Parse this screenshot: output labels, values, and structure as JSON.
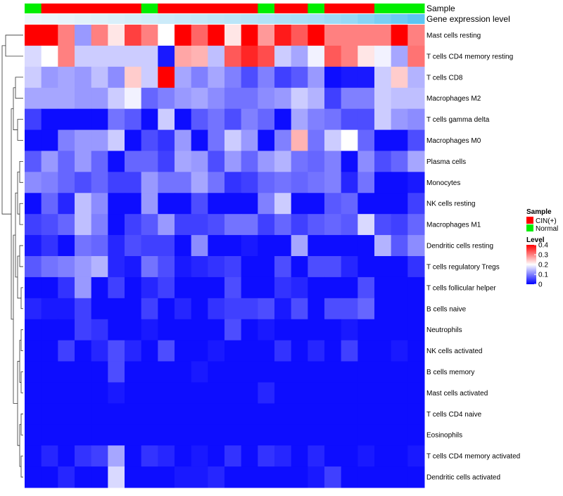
{
  "chart_data": {
    "type": "heatmap",
    "title": "",
    "annotation_tracks": [
      {
        "name": "Sample",
        "values": [
          "Normal",
          "CIN(+)",
          "CIN(+)",
          "CIN(+)",
          "CIN(+)",
          "CIN(+)",
          "CIN(+)",
          "Normal",
          "CIN(+)",
          "CIN(+)",
          "CIN(+)",
          "CIN(+)",
          "CIN(+)",
          "CIN(+)",
          "Normal",
          "CIN(+)",
          "CIN(+)",
          "Normal",
          "CIN(+)",
          "CIN(+)",
          "CIN(+)",
          "Normal",
          "Normal",
          "Normal"
        ]
      },
      {
        "name": "Gene expression level",
        "values": [
          0.0,
          0.02,
          0.05,
          0.08,
          0.11,
          0.14,
          0.17,
          0.2,
          0.23,
          0.26,
          0.29,
          0.32,
          0.35,
          0.38,
          0.41,
          0.44,
          0.47,
          0.5,
          0.55,
          0.6,
          0.7,
          0.8,
          0.9,
          1.0
        ]
      }
    ],
    "rows": [
      "Mast cells resting",
      "T cells CD4 memory resting",
      "T cells CD8",
      "Macrophages M2",
      "T cells gamma delta",
      "Macrophages M0",
      "Plasma cells",
      "Monocytes",
      "NK cells resting",
      "Macrophages M1",
      "Dendritic cells resting",
      "T cells regulatory  Tregs",
      "T cells follicular helper",
      "B cells naive",
      "Neutrophils",
      "NK cells activated",
      "B cells memory",
      "Mast cells activated",
      "T cells CD4 naive",
      "Eosinophils",
      "T cells CD4 memory activated",
      "Dendritic cells activated"
    ],
    "values": [
      [
        0.4,
        0.4,
        0.3,
        0.12,
        0.3,
        0.22,
        0.35,
        0.3,
        0.2,
        0.4,
        0.32,
        0.4,
        0.22,
        0.4,
        0.28,
        0.38,
        0.33,
        0.4,
        0.3,
        0.3,
        0.3,
        0.3,
        0.4,
        0.3
      ],
      [
        0.17,
        0.2,
        0.3,
        0.16,
        0.16,
        0.16,
        0.16,
        0.16,
        0.02,
        0.27,
        0.26,
        0.15,
        0.33,
        0.37,
        0.34,
        0.16,
        0.13,
        0.19,
        0.33,
        0.3,
        0.22,
        0.19,
        0.13,
        0.31
      ],
      [
        0.16,
        0.12,
        0.13,
        0.12,
        0.15,
        0.11,
        0.24,
        0.16,
        0.4,
        0.13,
        0.1,
        0.13,
        0.1,
        0.06,
        0.1,
        0.05,
        0.07,
        0.12,
        0.01,
        0.02,
        0.02,
        0.16,
        0.24,
        0.14
      ],
      [
        0.13,
        0.13,
        0.13,
        0.12,
        0.12,
        0.16,
        0.19,
        0.08,
        0.1,
        0.12,
        0.13,
        0.11,
        0.09,
        0.09,
        0.11,
        0.12,
        0.16,
        0.14,
        0.05,
        0.1,
        0.1,
        0.16,
        0.15,
        0.15
      ],
      [
        0.05,
        0.01,
        0.01,
        0.01,
        0.01,
        0.09,
        0.07,
        0.01,
        0.16,
        0.01,
        0.07,
        0.09,
        0.06,
        0.1,
        0.08,
        0.01,
        0.13,
        0.1,
        0.09,
        0.06,
        0.06,
        0.16,
        0.12,
        0.11
      ],
      [
        0.01,
        0.01,
        0.1,
        0.12,
        0.12,
        0.16,
        0.01,
        0.06,
        0.04,
        0.12,
        0.01,
        0.09,
        0.16,
        0.12,
        0.01,
        0.1,
        0.26,
        0.09,
        0.16,
        0.2,
        0.08,
        0.01,
        0.01,
        0.06
      ],
      [
        0.07,
        0.12,
        0.08,
        0.12,
        0.08,
        0.01,
        0.08,
        0.08,
        0.05,
        0.13,
        0.12,
        0.06,
        0.12,
        0.08,
        0.12,
        0.14,
        0.09,
        0.08,
        0.1,
        0.01,
        0.11,
        0.06,
        0.08,
        0.13
      ],
      [
        0.11,
        0.1,
        0.08,
        0.06,
        0.08,
        0.05,
        0.05,
        0.12,
        0.09,
        0.09,
        0.13,
        0.09,
        0.04,
        0.05,
        0.08,
        0.09,
        0.08,
        0.09,
        0.1,
        0.03,
        0.09,
        0.01,
        0.01,
        0.02
      ],
      [
        0.01,
        0.08,
        0.03,
        0.15,
        0.11,
        0.01,
        0.01,
        0.12,
        0.01,
        0.01,
        0.06,
        0.01,
        0.01,
        0.01,
        0.1,
        0.16,
        0.01,
        0.01,
        0.07,
        0.08,
        0.01,
        0.01,
        0.01,
        0.05
      ],
      [
        0.05,
        0.06,
        0.08,
        0.15,
        0.1,
        0.01,
        0.05,
        0.07,
        0.12,
        0.05,
        0.05,
        0.06,
        0.09,
        0.09,
        0.05,
        0.08,
        0.05,
        0.07,
        0.08,
        0.07,
        0.17,
        0.06,
        0.05,
        0.08
      ],
      [
        0.02,
        0.04,
        0.01,
        0.09,
        0.08,
        0.03,
        0.06,
        0.05,
        0.05,
        0.01,
        0.11,
        0.01,
        0.01,
        0.02,
        0.01,
        0.01,
        0.13,
        0.01,
        0.01,
        0.01,
        0.01,
        0.14,
        0.07,
        0.11
      ],
      [
        0.07,
        0.09,
        0.1,
        0.12,
        0.14,
        0.03,
        0.02,
        0.09,
        0.06,
        0.02,
        0.03,
        0.04,
        0.05,
        0.01,
        0.01,
        0.06,
        0.01,
        0.06,
        0.06,
        0.03,
        0.01,
        0.01,
        0.01,
        0.04
      ],
      [
        0.01,
        0.01,
        0.04,
        0.12,
        0.01,
        0.05,
        0.01,
        0.03,
        0.05,
        0.01,
        0.01,
        0.01,
        0.06,
        0.01,
        0.01,
        0.04,
        0.03,
        0.01,
        0.01,
        0.01,
        0.06,
        0.01,
        0.01,
        0.01
      ],
      [
        0.03,
        0.02,
        0.02,
        0.05,
        0.01,
        0.01,
        0.01,
        0.05,
        0.01,
        0.03,
        0.01,
        0.04,
        0.05,
        0.05,
        0.06,
        0.02,
        0.06,
        0.01,
        0.06,
        0.06,
        0.08,
        0.01,
        0.01,
        0.01
      ],
      [
        0.01,
        0.01,
        0.01,
        0.05,
        0.04,
        0.01,
        0.01,
        0.02,
        0.01,
        0.01,
        0.01,
        0.01,
        0.06,
        0.01,
        0.02,
        0.01,
        0.01,
        0.01,
        0.01,
        0.02,
        0.01,
        0.01,
        0.01,
        0.01
      ],
      [
        0.01,
        0.01,
        0.05,
        0.01,
        0.03,
        0.06,
        0.03,
        0.01,
        0.06,
        0.01,
        0.01,
        0.02,
        0.01,
        0.01,
        0.01,
        0.04,
        0.01,
        0.03,
        0.01,
        0.05,
        0.01,
        0.01,
        0.02,
        0.01
      ],
      [
        0.01,
        0.01,
        0.01,
        0.01,
        0.01,
        0.06,
        0.01,
        0.01,
        0.01,
        0.01,
        0.02,
        0.01,
        0.01,
        0.01,
        0.01,
        0.01,
        0.01,
        0.01,
        0.01,
        0.01,
        0.01,
        0.01,
        0.01,
        0.01
      ],
      [
        0.01,
        0.01,
        0.01,
        0.01,
        0.01,
        0.02,
        0.01,
        0.01,
        0.01,
        0.01,
        0.01,
        0.01,
        0.01,
        0.01,
        0.03,
        0.01,
        0.01,
        0.01,
        0.01,
        0.01,
        0.01,
        0.01,
        0.01,
        0.01
      ],
      [
        0.01,
        0.01,
        0.01,
        0.01,
        0.01,
        0.01,
        0.01,
        0.01,
        0.01,
        0.01,
        0.01,
        0.01,
        0.01,
        0.01,
        0.01,
        0.01,
        0.01,
        0.01,
        0.01,
        0.01,
        0.01,
        0.01,
        0.01,
        0.01
      ],
      [
        0.01,
        0.01,
        0.01,
        0.01,
        0.01,
        0.01,
        0.01,
        0.01,
        0.01,
        0.01,
        0.01,
        0.01,
        0.01,
        0.01,
        0.01,
        0.01,
        0.01,
        0.01,
        0.01,
        0.01,
        0.01,
        0.01,
        0.01,
        0.01
      ],
      [
        0.01,
        0.03,
        0.01,
        0.04,
        0.05,
        0.13,
        0.01,
        0.04,
        0.03,
        0.01,
        0.02,
        0.01,
        0.04,
        0.01,
        0.04,
        0.03,
        0.01,
        0.03,
        0.01,
        0.01,
        0.02,
        0.01,
        0.01,
        0.02
      ],
      [
        0.01,
        0.01,
        0.03,
        0.01,
        0.01,
        0.17,
        0.01,
        0.01,
        0.01,
        0.02,
        0.02,
        0.03,
        0.01,
        0.01,
        0.01,
        0.01,
        0.01,
        0.02,
        0.05,
        0.01,
        0.01,
        0.01,
        0.01,
        0.01
      ]
    ],
    "legend": {
      "sample_title": "Sample",
      "sample_items": [
        {
          "label": "CIN(+)",
          "color": "#ff0000"
        },
        {
          "label": "Normal",
          "color": "#00ee00"
        }
      ],
      "level_title": "Level",
      "level_ticks": [
        {
          "label": "0.4",
          "value": 0.4
        },
        {
          "label": "0.3",
          "value": 0.3
        },
        {
          "label": "0.2",
          "value": 0.2
        },
        {
          "label": "0.1",
          "value": 0.1
        },
        {
          "label": "0",
          "value": 0.0
        }
      ],
      "placement": "right"
    },
    "colors": {
      "low": "#0000ff",
      "mid": "#ffffff",
      "high": "#ff0000",
      "expr_low": "#eef6fb",
      "expr_high": "#5cc5f2"
    },
    "color_range": [
      0,
      0.4
    ],
    "dendrogram": "left",
    "grid": false
  }
}
